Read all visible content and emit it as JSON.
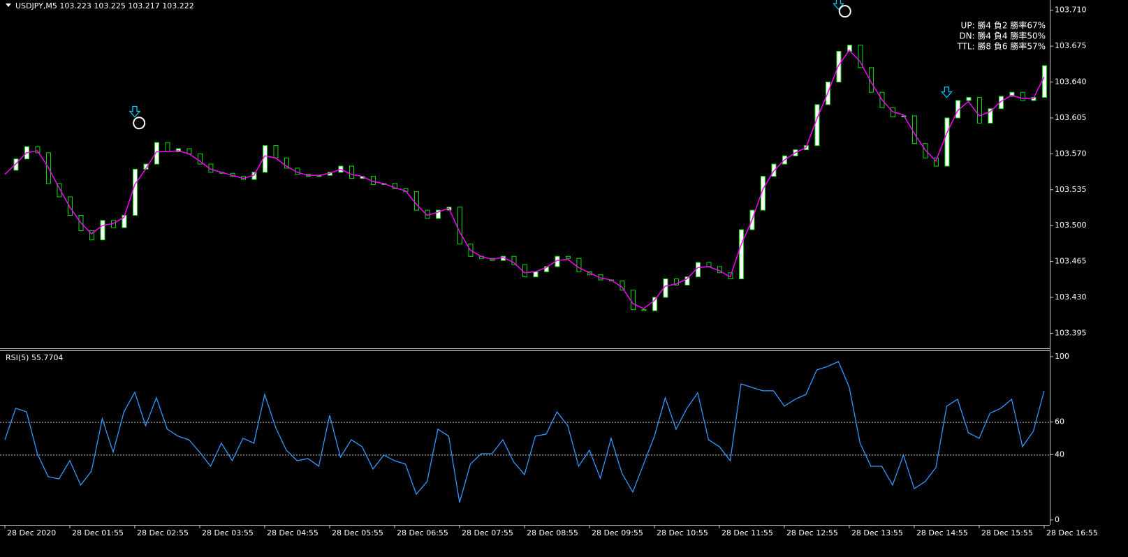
{
  "chart_data": [
    {
      "type": "candlestick",
      "title": "USDJPY,M5  103.223 103.225 103.217 103.222",
      "close": [
        103.554,
        103.565,
        103.577,
        103.571,
        103.541,
        103.528,
        103.51,
        103.495,
        103.486,
        103.505,
        103.498,
        103.51,
        103.555,
        103.56,
        103.581,
        103.572,
        103.575,
        103.57,
        103.56,
        103.552,
        103.551,
        103.548,
        103.545,
        103.552,
        103.578,
        103.566,
        103.556,
        103.55,
        103.548,
        103.549,
        103.552,
        103.558,
        103.546,
        103.548,
        103.54,
        103.541,
        103.536,
        103.533,
        103.515,
        103.507,
        103.515,
        103.518,
        103.482,
        103.47,
        103.468,
        103.466,
        103.47,
        103.462,
        103.45,
        103.455,
        103.46,
        103.47,
        103.468,
        103.455,
        103.452,
        103.447,
        103.446,
        103.437,
        103.418,
        103.417,
        103.43,
        103.448,
        103.442,
        103.45,
        103.464,
        103.46,
        103.454,
        103.448,
        103.496,
        103.515,
        103.548,
        103.56,
        103.568,
        103.574,
        103.578,
        103.618,
        103.64,
        103.67,
        103.676,
        103.654,
        103.63,
        103.615,
        103.606,
        103.607,
        103.58,
        103.566,
        103.558,
        103.605,
        103.622,
        103.625,
        103.6,
        103.614,
        103.626,
        103.63,
        103.622,
        103.625,
        103.656
      ],
      "up_color": "#ffffff",
      "down_color": "#000000",
      "outline_color": "#00e000",
      "ma": {
        "color": "#ff00ff",
        "values": [
          103.55,
          103.56,
          103.571,
          103.573,
          103.557,
          103.537,
          103.518,
          103.503,
          103.492,
          103.5,
          103.502,
          103.508,
          103.54,
          103.555,
          103.572,
          103.572,
          103.573,
          103.57,
          103.563,
          103.555,
          103.552,
          103.549,
          103.546,
          103.549,
          103.568,
          103.566,
          103.558,
          103.552,
          103.549,
          103.549,
          103.551,
          103.555,
          103.55,
          103.548,
          103.543,
          103.541,
          103.537,
          103.534,
          103.521,
          103.51,
          103.513,
          103.517,
          103.494,
          103.476,
          103.47,
          103.467,
          103.469,
          103.464,
          103.454,
          103.455,
          103.459,
          103.466,
          103.467,
          103.459,
          103.454,
          103.449,
          103.447,
          103.44,
          103.424,
          103.419,
          103.427,
          103.441,
          103.443,
          103.448,
          103.459,
          103.46,
          103.456,
          103.45,
          103.481,
          103.505,
          103.535,
          103.553,
          103.564,
          103.571,
          103.576,
          103.604,
          103.629,
          103.656,
          103.671,
          103.66,
          103.64,
          103.623,
          103.611,
          103.608,
          103.59,
          103.574,
          103.563,
          103.59,
          103.612,
          103.621,
          103.607,
          103.611,
          103.621,
          103.627,
          103.624,
          103.624,
          103.645
        ]
      },
      "arrows": {
        "color": "#00c8ff",
        "x": [
          12,
          77,
          87
        ],
        "y": [
          103.608,
          103.713,
          103.627
        ]
      },
      "circles": {
        "color": "#ffffff",
        "x": [
          12.4,
          77.6
        ],
        "y": [
          103.6,
          103.709
        ]
      },
      "stats": {
        "color": "#e6c800",
        "lines": [
          "UP: 勝4 負2 勝率67%",
          "DN: 勝4 負4 勝率50%",
          "TTL: 勝8 負6 勝率57%"
        ]
      },
      "xlim": [
        -0.45,
        96.52
      ],
      "ylim": [
        103.381,
        103.72
      ],
      "yticks": [
        103.395,
        {
          "value": 103.43,
          "label": "103.430"
        },
        103.465,
        {
          "value": 103.5,
          "label": "103.500"
        },
        103.535,
        {
          "value": 103.57,
          "label": "103.570"
        },
        103.605,
        {
          "value": 103.64,
          "label": "103.640"
        },
        103.675,
        {
          "value": 103.71,
          "label": "103.710"
        }
      ]
    },
    {
      "type": "line",
      "title": "RSI(5) 55.7704",
      "color": "#3399ff",
      "values": [
        49.1,
        68.4,
        66.2,
        40.6,
        26.5,
        25.2,
        36.3,
        21.4,
        29.9,
        62.0,
        41.5,
        66.2,
        78.2,
        57.7,
        74.8,
        55.6,
        51.3,
        49.1,
        41.5,
        32.9,
        47.0,
        36.3,
        50.0,
        47.0,
        76.9,
        56.8,
        42.7,
        36.3,
        37.6,
        32.9,
        64.1,
        38.5,
        49.1,
        44.9,
        31.2,
        39.7,
        36.3,
        34.2,
        15.8,
        23.5,
        55.6,
        51.3,
        10.7,
        34.2,
        40.6,
        40.6,
        49.1,
        35.5,
        27.8,
        51.3,
        52.6,
        66.2,
        57.7,
        32.9,
        42.7,
        25.6,
        50.0,
        28.6,
        17.1,
        34.2,
        51.3,
        74.8,
        55.6,
        68.4,
        77.8,
        49.1,
        44.9,
        36.3,
        83.3,
        81.2,
        79.1,
        79.1,
        69.7,
        73.9,
        76.9,
        91.9,
        94.0,
        97.0,
        81.2,
        47.0,
        32.9,
        32.9,
        21.4,
        39.7,
        19.2,
        23.5,
        32.1,
        69.7,
        73.9,
        53.4,
        50.0,
        65.4,
        68.4,
        73.9,
        44.9,
        54.3,
        79.1
      ],
      "levels": [
        40,
        60
      ],
      "xlim": [
        -0.45,
        96.52
      ],
      "ylim": [
        -3,
        103.4
      ],
      "yticks": [
        0,
        40,
        60,
        100
      ],
      "xticks": [
        {
          "value": 0,
          "label": "28 Dec 2020"
        },
        {
          "value": 6,
          "label": "28 Dec 01:55"
        },
        {
          "value": 12,
          "label": "28 Dec 02:55"
        },
        {
          "value": 18,
          "label": "28 Dec 03:55"
        },
        {
          "value": 24,
          "label": "28 Dec 04:55"
        },
        {
          "value": 30,
          "label": "28 Dec 05:55"
        },
        {
          "value": 36,
          "label": "28 Dec 06:55"
        },
        {
          "value": 42,
          "label": "28 Dec 07:55"
        },
        {
          "value": 48,
          "label": "28 Dec 08:55"
        },
        {
          "value": 54,
          "label": "28 Dec 09:55"
        },
        {
          "value": 60,
          "label": "28 Dec 10:55"
        },
        {
          "value": 66,
          "label": "28 Dec 11:55"
        },
        {
          "value": 72,
          "label": "28 Dec 12:55"
        },
        {
          "value": 78,
          "label": "28 Dec 13:55"
        },
        {
          "value": 84,
          "label": "28 Dec 14:55"
        },
        {
          "value": 90,
          "label": "28 Dec 15:55"
        },
        {
          "value": 96,
          "label": "28 Dec 16:55"
        }
      ]
    }
  ]
}
